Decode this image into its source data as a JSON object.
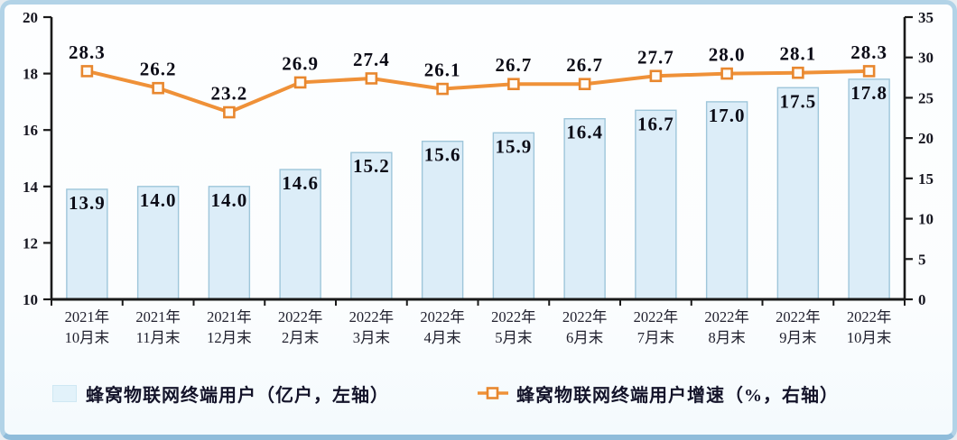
{
  "chart_data": {
    "type": "bar",
    "subtype": "bar-line-combo",
    "categories": [
      {
        "line1": "2021年",
        "line2": "10月末"
      },
      {
        "line1": "2021年",
        "line2": "11月末"
      },
      {
        "line1": "2021年",
        "line2": "12月末"
      },
      {
        "line1": "2022年",
        "line2": "2月末"
      },
      {
        "line1": "2022年",
        "line2": "3月末"
      },
      {
        "line1": "2022年",
        "line2": "4月末"
      },
      {
        "line1": "2022年",
        "line2": "5月末"
      },
      {
        "line1": "2022年",
        "line2": "6月末"
      },
      {
        "line1": "2022年",
        "line2": "7月末"
      },
      {
        "line1": "2022年",
        "line2": "8月末"
      },
      {
        "line1": "2022年",
        "line2": "9月末"
      },
      {
        "line1": "2022年",
        "line2": "10月末"
      }
    ],
    "series": [
      {
        "name": "蜂窝物联网终端用户（亿户，左轴）",
        "type": "bar",
        "axis": "left",
        "values": [
          13.9,
          14.0,
          14.0,
          14.6,
          15.2,
          15.6,
          15.9,
          16.4,
          16.7,
          17.0,
          17.5,
          17.8
        ]
      },
      {
        "name": "蜂窝物联网终端用户增速（%，右轴）",
        "type": "line",
        "axis": "right",
        "values": [
          28.3,
          26.2,
          23.2,
          26.9,
          27.4,
          26.1,
          26.7,
          26.7,
          27.7,
          28.0,
          28.1,
          28.3
        ]
      }
    ],
    "left_axis": {
      "min": 10,
      "max": 20,
      "ticks": [
        10,
        12,
        14,
        16,
        18,
        20
      ]
    },
    "right_axis": {
      "min": 0,
      "max": 35,
      "ticks": [
        0,
        5,
        10,
        15,
        20,
        25,
        30,
        35
      ]
    },
    "title": "",
    "grid": false,
    "legend_position": "bottom",
    "colors": {
      "bar_fill": "#dcedf8",
      "bar_border": "#9ec6da",
      "line": "#ef9138",
      "marker_fill": "#fefcf8",
      "marker_border": "#e8872e",
      "axis": "#1a1a1a",
      "value_label": "#0b0b16",
      "frame_border": "#b2d3e7",
      "frame_bg": "#fdfeff"
    }
  },
  "legend": {
    "items": [
      {
        "label": "蜂窝物联网终端用户（亿户，左轴）",
        "swatch": "light-blue-square"
      },
      {
        "label": "蜂窝物联网终端用户增速（%，右轴）",
        "swatch": "orange-line-square-marker"
      }
    ]
  }
}
